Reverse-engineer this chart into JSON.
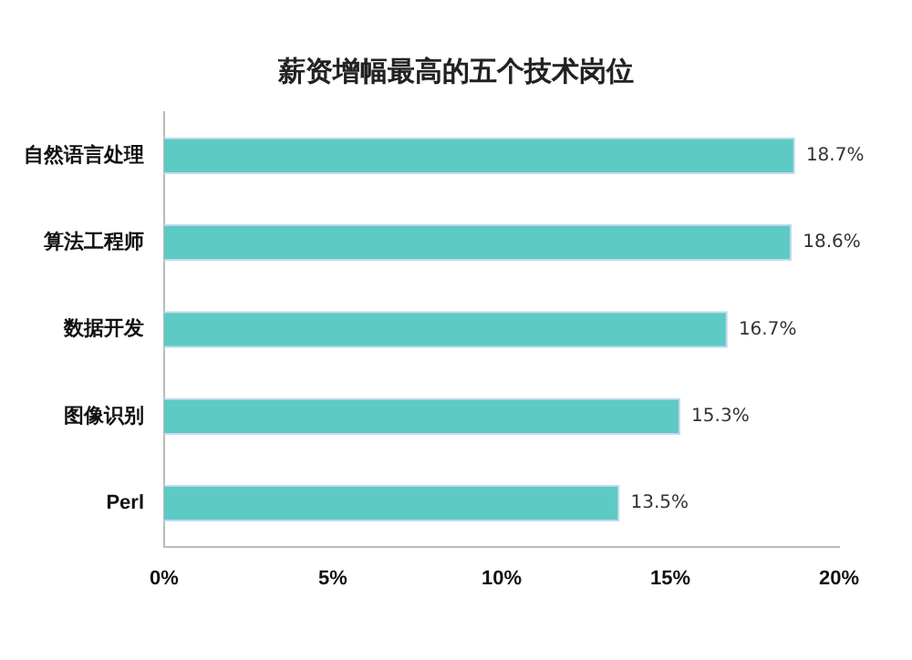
{
  "chart_data": {
    "type": "bar",
    "orientation": "horizontal",
    "title": "薪资增幅最高的五个技术岗位",
    "categories": [
      "自然语言处理",
      "算法工程师",
      "数据开发",
      "图像识别",
      "Perl"
    ],
    "values": [
      18.7,
      18.6,
      16.7,
      15.3,
      13.5
    ],
    "color": "#5ecac4",
    "value_labels": [
      "18.7%",
      "18.6%",
      "16.7%",
      "15.3%",
      "13.5%"
    ],
    "xlim": [
      0,
      20
    ],
    "xticks": [
      {
        "value": 0,
        "label": "0%"
      },
      {
        "value": 5,
        "label": "5%"
      },
      {
        "value": 10,
        "label": "10%"
      },
      {
        "value": 15,
        "label": "15%"
      },
      {
        "value": 20,
        "label": "20%"
      }
    ],
    "grid": false,
    "legend": false
  }
}
